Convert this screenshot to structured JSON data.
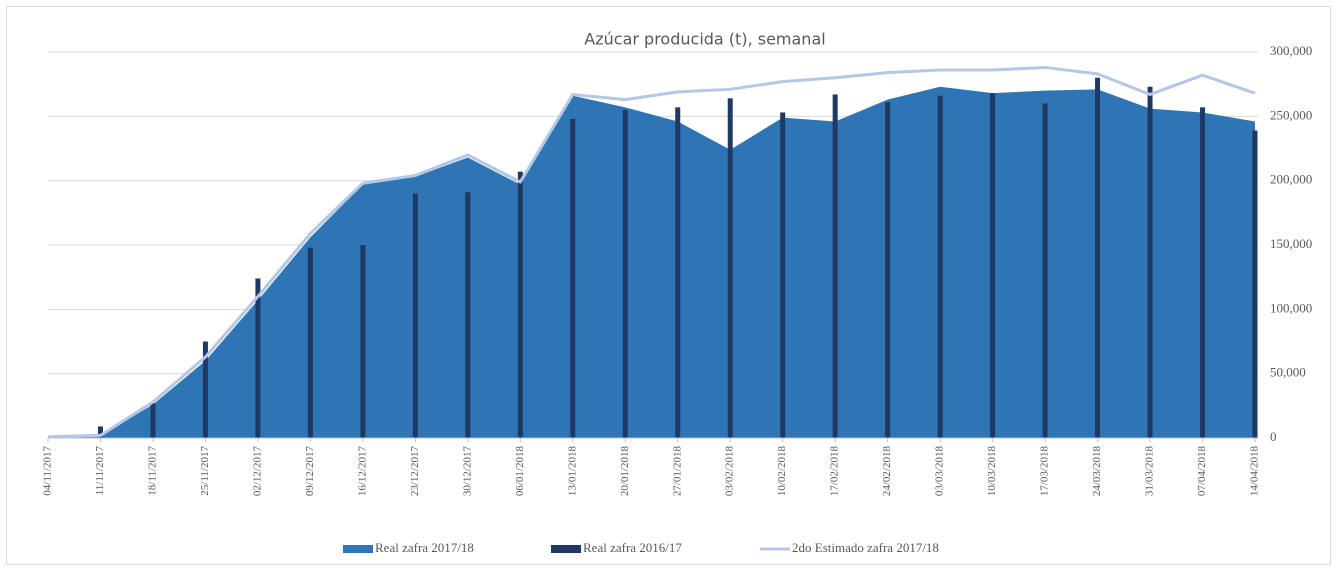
{
  "chart_data": {
    "type": "combo",
    "title": "Azúcar producida (t), semanal",
    "categories": [
      "04/11/2017",
      "11/11/2017",
      "18/11/2017",
      "25/11/2017",
      "02/12/2017",
      "09/12/2017",
      "16/12/2017",
      "23/12/2017",
      "30/12/2017",
      "06/01/2018",
      "13/01/2018",
      "20/01/2018",
      "27/01/2018",
      "03/02/2018",
      "10/02/2018",
      "17/02/2018",
      "24/02/2018",
      "03/03/2018",
      "10/03/2018",
      "17/03/2018",
      "24/03/2018",
      "31/03/2018",
      "07/04/2018",
      "14/04/2018"
    ],
    "series": [
      {
        "name": "Real zafra 2017/18",
        "kind": "area",
        "color": "#2e75b6",
        "values": [
          1000,
          2000,
          26000,
          60000,
          107000,
          156000,
          197000,
          203000,
          218000,
          197000,
          266000,
          257000,
          246000,
          224000,
          249000,
          246000,
          263000,
          273000,
          268000,
          270000,
          271000,
          256000,
          253000,
          246000
        ]
      },
      {
        "name": "Real zafra 2016/17",
        "kind": "bar",
        "color": "#203864",
        "values": [
          null,
          9000,
          27000,
          75000,
          124000,
          148000,
          150000,
          190000,
          191000,
          207000,
          248000,
          255000,
          257000,
          264000,
          253000,
          267000,
          261000,
          266000,
          268000,
          260000,
          280000,
          273000,
          257000,
          239000
        ]
      },
      {
        "name": "2do Estimado zafra 2017/18",
        "kind": "line",
        "color": "#b4c7e7",
        "values": [
          1000,
          2000,
          28000,
          63000,
          110000,
          159000,
          198000,
          204000,
          220000,
          199000,
          267000,
          263000,
          269000,
          271000,
          277000,
          280000,
          284000,
          286000,
          286000,
          288000,
          283000,
          267000,
          282000,
          268000
        ]
      }
    ],
    "ylim": [
      0,
      300000
    ],
    "yticks": [
      {
        "value": 0,
        "label": "0"
      },
      {
        "value": 50000,
        "label": "50,000"
      },
      {
        "value": 100000,
        "label": "100,000"
      },
      {
        "value": 150000,
        "label": "150,000"
      },
      {
        "value": 200000,
        "label": "200,000"
      },
      {
        "value": 250000,
        "label": "250,000"
      },
      {
        "value": 300000,
        "label": "300,000"
      }
    ],
    "grid": true
  }
}
